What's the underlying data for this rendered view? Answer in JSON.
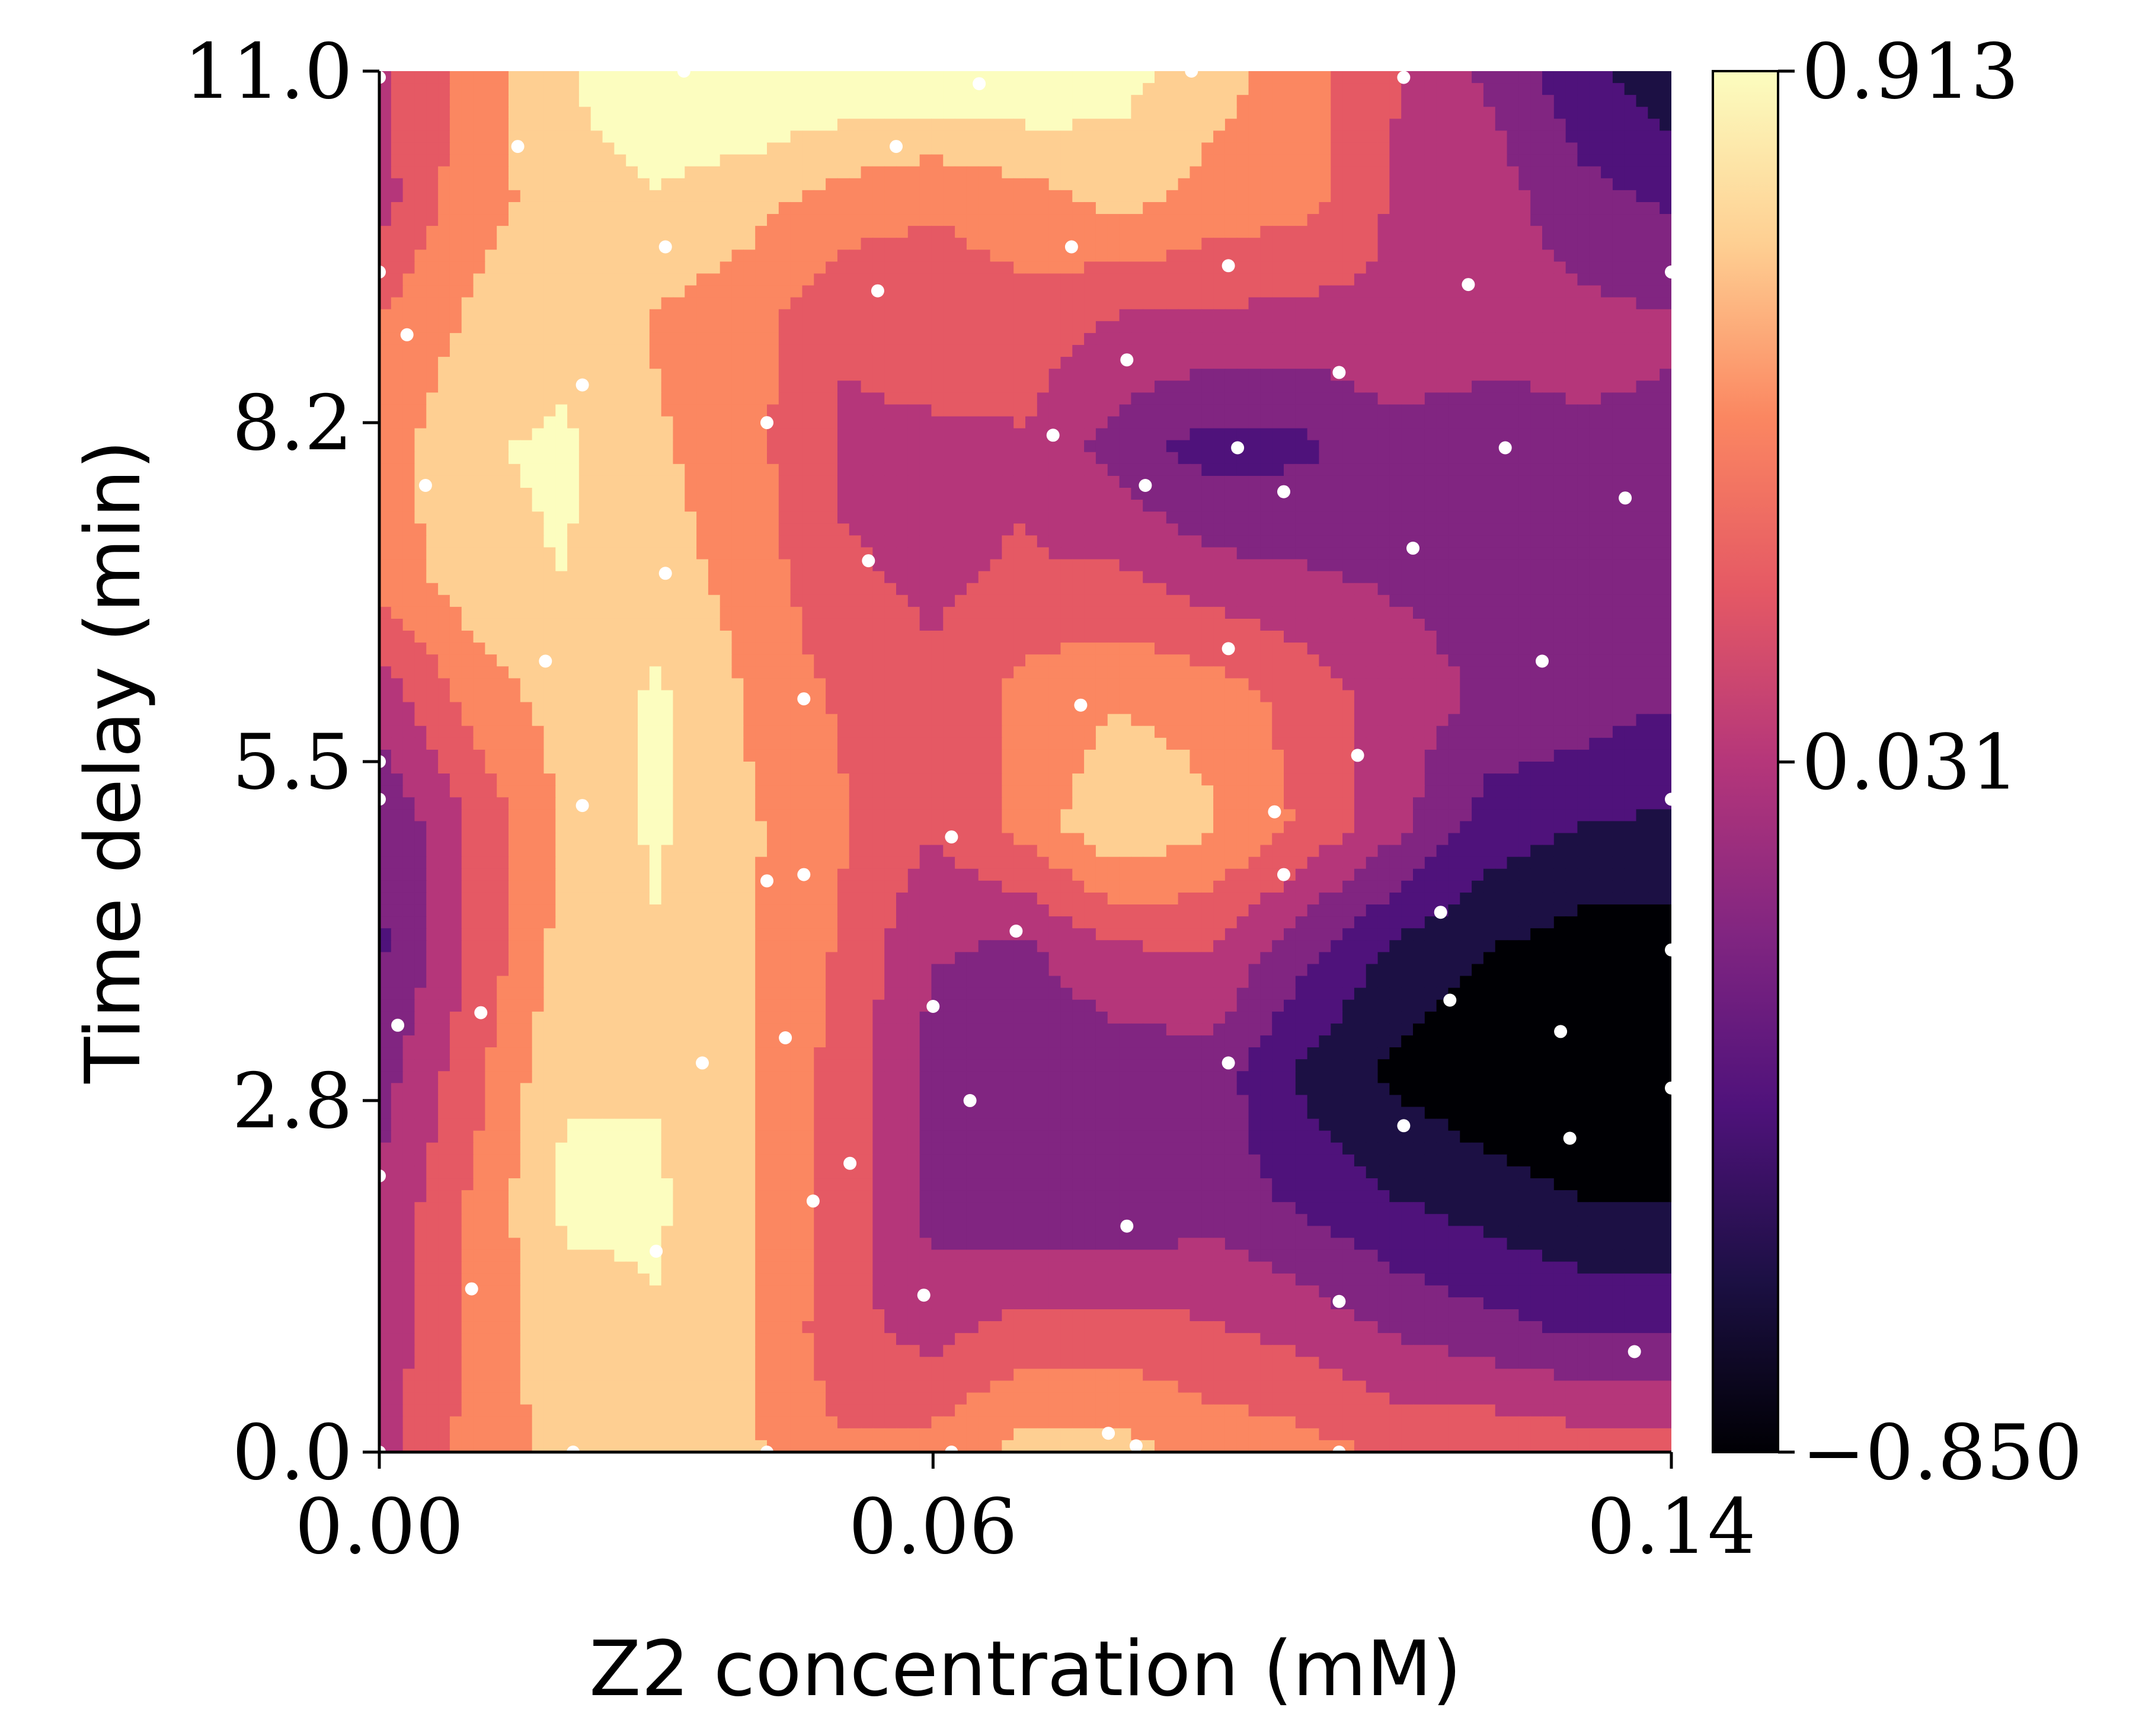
{
  "chart_data": {
    "type": "heatmap",
    "subtype": "filled-contour with sample points",
    "title": "",
    "xlabel": "Z2 concentration (mM)",
    "ylabel": "Time delay (min)",
    "xlim": [
      0.0,
      0.14
    ],
    "ylim": [
      0.0,
      11.0
    ],
    "x_ticks": [
      "0.00",
      "0.06",
      "0.14"
    ],
    "y_ticks": [
      "0.0",
      "2.8",
      "5.5",
      "8.2",
      "11.0"
    ],
    "colormap": "magma",
    "colorbar": {
      "min": -0.85,
      "mid": 0.031,
      "max": 0.913,
      "tick_labels": [
        "−0.850",
        "0.031",
        "0.913"
      ],
      "levels": 9
    },
    "colors": [
      "#000004",
      "#1c1044",
      "#4f127b",
      "#812581",
      "#b5367a",
      "#e55964",
      "#fb8761",
      "#fecf92",
      "#fcfdbf"
    ],
    "grid_x": [
      0.0,
      0.01,
      0.02,
      0.03,
      0.04,
      0.05,
      0.06,
      0.07,
      0.08,
      0.09,
      0.1,
      0.11,
      0.12,
      0.13,
      0.14
    ],
    "grid_y": [
      0.0,
      1.0,
      2.0,
      3.0,
      4.0,
      5.0,
      6.0,
      7.0,
      8.0,
      9.0,
      10.0,
      11.0
    ],
    "z": [
      [
        0.05,
        0.4,
        0.6,
        0.65,
        0.55,
        0.35,
        0.4,
        0.6,
        0.6,
        0.45,
        0.4,
        0.3,
        0.3,
        0.25,
        0.2
      ],
      [
        0.0,
        0.35,
        0.65,
        0.7,
        0.55,
        0.2,
        0.05,
        0.2,
        0.2,
        0.15,
        0.05,
        -0.1,
        -0.2,
        -0.3,
        -0.3
      ],
      [
        -0.05,
        0.35,
        0.75,
        0.75,
        0.55,
        0.25,
        -0.15,
        -0.25,
        -0.25,
        -0.15,
        -0.3,
        -0.45,
        -0.55,
        -0.65,
        -0.65
      ],
      [
        -0.15,
        0.25,
        0.7,
        0.7,
        0.55,
        0.25,
        -0.15,
        -0.2,
        -0.2,
        -0.15,
        -0.5,
        -0.7,
        -0.8,
        -0.9,
        -0.9
      ],
      [
        -0.3,
        0.15,
        0.6,
        0.7,
        0.55,
        0.3,
        -0.05,
        -0.1,
        0.1,
        0.15,
        -0.2,
        -0.5,
        -0.65,
        -0.75,
        -0.75
      ],
      [
        -0.25,
        0.15,
        0.55,
        0.75,
        0.55,
        0.35,
        0.15,
        0.4,
        0.7,
        0.55,
        0.3,
        0.0,
        -0.35,
        -0.45,
        -0.5
      ],
      [
        0.0,
        0.4,
        0.6,
        0.75,
        0.5,
        0.3,
        0.15,
        0.4,
        0.5,
        0.45,
        0.25,
        0.05,
        -0.1,
        -0.15,
        -0.25
      ],
      [
        0.4,
        0.65,
        0.72,
        0.6,
        0.45,
        0.15,
        0.1,
        0.15,
        0.15,
        0.0,
        -0.05,
        -0.1,
        -0.15,
        -0.15,
        -0.15
      ],
      [
        0.4,
        0.7,
        0.75,
        0.55,
        0.4,
        0.1,
        0.1,
        0.1,
        -0.15,
        -0.35,
        -0.3,
        -0.15,
        -0.15,
        -0.1,
        -0.1
      ],
      [
        0.35,
        0.55,
        0.65,
        0.5,
        0.4,
        0.15,
        0.2,
        0.25,
        0.1,
        0.1,
        0.05,
        0.1,
        0.0,
        0.0,
        -0.05
      ],
      [
        0.05,
        0.45,
        0.6,
        0.7,
        0.6,
        0.45,
        0.35,
        0.45,
        0.6,
        0.45,
        0.4,
        0.1,
        0.05,
        -0.2,
        -0.3
      ],
      [
        0.1,
        0.4,
        0.7,
        0.92,
        0.95,
        0.9,
        0.92,
        0.92,
        0.8,
        0.62,
        0.4,
        0.15,
        -0.1,
        -0.4,
        -0.6
      ]
    ],
    "sample_points": [
      [
        0.0,
        10.95
      ],
      [
        0.0,
        9.4
      ],
      [
        0.0,
        5.5
      ],
      [
        0.0,
        5.2
      ],
      [
        0.0,
        2.2
      ],
      [
        0.003,
        8.9
      ],
      [
        0.005,
        7.7
      ],
      [
        0.002,
        3.4
      ],
      [
        0.011,
        3.5
      ],
      [
        0.01,
        1.3
      ],
      [
        0.015,
        10.4
      ],
      [
        0.022,
        8.5
      ],
      [
        0.022,
        5.15
      ],
      [
        0.018,
        6.3
      ],
      [
        0.031,
        9.6
      ],
      [
        0.031,
        7.0
      ],
      [
        0.035,
        3.1
      ],
      [
        0.03,
        1.6
      ],
      [
        0.033,
        11.0
      ],
      [
        0.042,
        8.2
      ],
      [
        0.046,
        6.0
      ],
      [
        0.046,
        4.6
      ],
      [
        0.042,
        4.55
      ],
      [
        0.044,
        3.3
      ],
      [
        0.047,
        2.0
      ],
      [
        0.051,
        2.3
      ],
      [
        0.056,
        10.4
      ],
      [
        0.054,
        9.25
      ],
      [
        0.053,
        7.1
      ],
      [
        0.062,
        4.9
      ],
      [
        0.06,
        3.55
      ],
      [
        0.059,
        1.25
      ],
      [
        0.065,
        10.9
      ],
      [
        0.069,
        4.15
      ],
      [
        0.079,
        0.15
      ],
      [
        0.075,
        9.6
      ],
      [
        0.073,
        8.1
      ],
      [
        0.076,
        5.95
      ],
      [
        0.064,
        2.8
      ],
      [
        0.081,
        8.7
      ],
      [
        0.083,
        7.7
      ],
      [
        0.081,
        1.8
      ],
      [
        0.088,
        11.0
      ],
      [
        0.092,
        9.45
      ],
      [
        0.093,
        8.0
      ],
      [
        0.098,
        7.65
      ],
      [
        0.092,
        6.4
      ],
      [
        0.092,
        3.1
      ],
      [
        0.097,
        5.1
      ],
      [
        0.098,
        4.6
      ],
      [
        0.104,
        8.6
      ],
      [
        0.104,
        1.2
      ],
      [
        0.106,
        5.55
      ],
      [
        0.111,
        2.6
      ],
      [
        0.111,
        10.95
      ],
      [
        0.112,
        7.2
      ],
      [
        0.115,
        4.3
      ],
      [
        0.116,
        3.6
      ],
      [
        0.118,
        9.3
      ],
      [
        0.122,
        8.0
      ],
      [
        0.126,
        6.3
      ],
      [
        0.128,
        3.35
      ],
      [
        0.129,
        2.5
      ],
      [
        0.135,
        7.6
      ],
      [
        0.136,
        0.8
      ],
      [
        0.14,
        9.4
      ],
      [
        0.14,
        5.2
      ],
      [
        0.14,
        4.0
      ],
      [
        0.14,
        2.9
      ],
      [
        0.104,
        0.0
      ],
      [
        0.082,
        0.05
      ],
      [
        0.062,
        0.0
      ],
      [
        0.042,
        0.0
      ],
      [
        0.021,
        0.0
      ],
      [
        0.0,
        0.0
      ]
    ]
  }
}
